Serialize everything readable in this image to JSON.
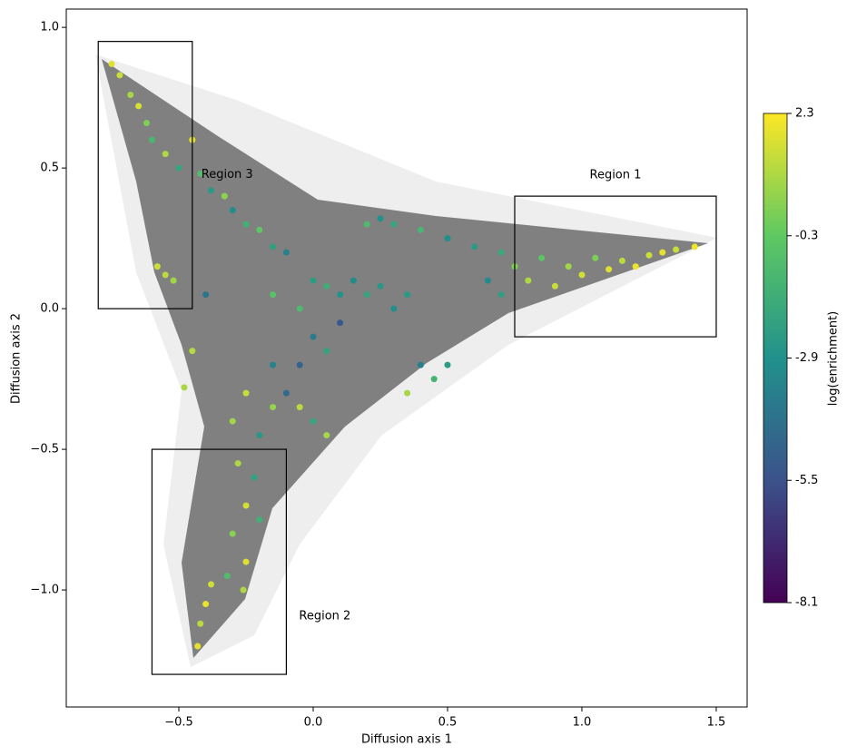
{
  "chart_data": {
    "type": "scatter",
    "xlabel": "Diffusion axis 1",
    "ylabel": "Diffusion axis 2",
    "colorbar_label": "log(enrichment)",
    "colormap": "viridis",
    "xlim": [
      -0.919,
      1.615
    ],
    "ylim": [
      -1.416,
      1.065
    ],
    "clim": [
      -8.1,
      2.3
    ],
    "xticks": [
      {
        "value": -0.5,
        "label": "−0.5"
      },
      {
        "value": 0,
        "label": "0.0"
      },
      {
        "value": 0.5,
        "label": "0.5"
      },
      {
        "value": 1,
        "label": "1.0"
      },
      {
        "value": 1.5,
        "label": "1.5"
      }
    ],
    "yticks": [
      {
        "value": -1,
        "label": "−1.0"
      },
      {
        "value": -0.5,
        "label": "−0.5"
      },
      {
        "value": 0,
        "label": "0.0"
      },
      {
        "value": 0.5,
        "label": "0.5"
      },
      {
        "value": 1,
        "label": "1.0"
      }
    ],
    "cticks": [
      2.3,
      -0.3,
      -2.9,
      -5.5,
      -8.1
    ],
    "regions": [
      {
        "label": "Region 1",
        "x": [
          0.75,
          1.5
        ],
        "y": [
          -0.1,
          0.4
        ]
      },
      {
        "label": "Region 2",
        "x": [
          -0.6,
          -0.1
        ],
        "y": [
          -1.3,
          -0.5
        ]
      },
      {
        "label": "Region 3",
        "x": [
          -0.8,
          -0.45
        ],
        "y": [
          0,
          0.95
        ]
      }
    ],
    "x": [
      -0.75,
      -0.72,
      -0.68,
      -0.65,
      -0.62,
      -0.6,
      -0.55,
      -0.5,
      -0.45,
      -0.42,
      -0.38,
      -0.33,
      -0.3,
      -0.25,
      -0.2,
      -0.15,
      -0.1,
      -0.55,
      -0.52,
      -0.58,
      -0.4,
      0,
      0.05,
      0.1,
      0.15,
      0.2,
      0.25,
      -0.05,
      0,
      0.05,
      0.3,
      0.35,
      -0.15,
      0.1,
      0.3,
      0.4,
      0.5,
      0.6,
      0.7,
      0.75,
      0.8,
      0.85,
      0.9,
      0.95,
      1.0,
      1.05,
      1.1,
      1.15,
      1.2,
      1.25,
      1.3,
      1.35,
      1.42,
      0.65,
      0.7,
      0.4,
      0.35,
      0.45,
      0.5,
      0.2,
      0.25,
      -0.1,
      -0.15,
      -0.05,
      0,
      0.05,
      -0.25,
      -0.3,
      -0.2,
      -0.28,
      -0.22,
      -0.25,
      -0.2,
      -0.3,
      -0.25,
      -0.32,
      -0.38,
      -0.4,
      -0.42,
      -0.43,
      -0.26,
      -0.45,
      -0.48,
      -0.15,
      -0.05
    ],
    "y": [
      0.87,
      0.83,
      0.76,
      0.72,
      0.66,
      0.6,
      0.55,
      0.5,
      0.6,
      0.48,
      0.42,
      0.4,
      0.35,
      0.3,
      0.28,
      0.22,
      0.2,
      0.12,
      0.1,
      0.15,
      0.05,
      0.1,
      0.08,
      0.05,
      0.1,
      0.05,
      0.08,
      0,
      -0.1,
      -0.15,
      0,
      0.05,
      0.05,
      -0.05,
      0.3,
      0.28,
      0.25,
      0.22,
      0.2,
      0.15,
      0.1,
      0.18,
      0.08,
      0.15,
      0.12,
      0.18,
      0.14,
      0.17,
      0.15,
      0.19,
      0.2,
      0.21,
      0.22,
      0.1,
      0.05,
      -0.2,
      -0.3,
      -0.25,
      -0.2,
      0.3,
      0.32,
      -0.3,
      -0.35,
      -0.35,
      -0.4,
      -0.45,
      -0.3,
      -0.4,
      -0.45,
      -0.55,
      -0.6,
      -0.7,
      -0.75,
      -0.8,
      -0.9,
      -0.95,
      -0.98,
      -1.05,
      -1.12,
      -1.2,
      -1,
      -0.15,
      -0.28,
      -0.2,
      -0.2
    ],
    "c": [
      1.8,
      1.5,
      0.9,
      1.7,
      0.2,
      -1.2,
      1,
      -2,
      1.9,
      -0.8,
      -2.5,
      0.5,
      -3.1,
      -1.5,
      -0.4,
      -2.2,
      -3.5,
      1.2,
      0.8,
      1.5,
      -4,
      -2.4,
      -1.6,
      -2.8,
      -3.2,
      -2,
      -2.6,
      -1,
      -3.8,
      -2.1,
      -3,
      -2.5,
      -0.6,
      -5.2,
      -2,
      -1.2,
      -3,
      -2.5,
      -1.8,
      0.3,
      1,
      -0.5,
      1.4,
      0.8,
      1.6,
      0.2,
      1.8,
      1.2,
      2,
      1.5,
      1.9,
      1.4,
      2.1,
      -3.2,
      -2.2,
      -3.6,
      0.9,
      -1.3,
      -2.4,
      -1,
      -2.9,
      -4.5,
      0.6,
      1.2,
      -2,
      0.9,
      1.4,
      0.8,
      -2.6,
      1,
      -2.2,
      1.6,
      -1.5,
      0.4,
      1.8,
      -0.9,
      1.5,
      2,
      1.2,
      1.9,
      1,
      1.1,
      0.9,
      -3.5,
      -4.8
    ]
  }
}
